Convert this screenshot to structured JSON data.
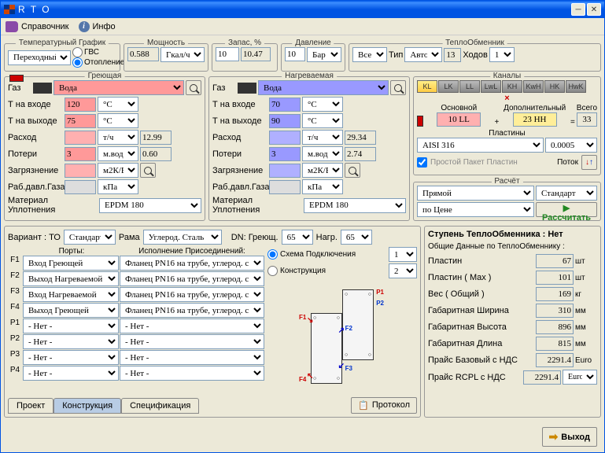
{
  "window": {
    "title": "R T O"
  },
  "menu": {
    "ref": "Справочник",
    "info": "Инфо"
  },
  "tempgraph": {
    "title": "Температурный График",
    "select": "Переходный",
    "gvs": "ГВС",
    "heating": "Отопление"
  },
  "power": {
    "title": "Мощность",
    "val": "0.588",
    "unit": "Гкал/ч"
  },
  "reserve": {
    "title": "Запас, %",
    "v1": "10",
    "v2": "10.47"
  },
  "pressure": {
    "title": "Давление",
    "val": "10",
    "unit": "Бар"
  },
  "hx": {
    "title": "ТеплоОбменник",
    "all": "Все",
    "type_lbl": "Тип",
    "type": "Авто",
    "val": "13",
    "moves_lbl": "Ходов",
    "moves": "1"
  },
  "hot": {
    "title": "Греющая",
    "gas": "Газ",
    "fluid": "Вода",
    "tin_lbl": "Т на входе",
    "tin": "120",
    "tin_u": "°C",
    "tout_lbl": "Т на выходе",
    "tout": "75",
    "tout_u": "°C",
    "flow_lbl": "Расход",
    "flow": "",
    "flow_u": "т/ч",
    "flow_calc": "12.99",
    "loss_lbl": "Потери",
    "loss": "3",
    "loss_u": "м.вод.с",
    "loss_calc": "0.60",
    "foul_lbl": "Загрязнение",
    "foul": "",
    "foul_u": "м2К/Вт",
    "press_lbl": "Раб.давл.Газа",
    "press": "",
    "press_u": "кПа",
    "mat_lbl": "Материал Уплотнения",
    "mat": "EPDM 180"
  },
  "cold": {
    "title": "Нагреваемая",
    "gas": "Газ",
    "fluid": "Вода",
    "tin_lbl": "Т на входе",
    "tin": "70",
    "tin_u": "°C",
    "tout_lbl": "Т на выходе",
    "tout": "90",
    "tout_u": "°C",
    "flow_lbl": "Расход",
    "flow": "",
    "flow_u": "т/ч",
    "flow_calc": "29.34",
    "loss_lbl": "Потери",
    "loss": "3",
    "loss_u": "м.вод.с",
    "loss_calc": "2.74",
    "foul_lbl": "Загрязнение",
    "foul": "",
    "foul_u": "м2К/Вт",
    "press_lbl": "Раб.давл.Газа",
    "press": "",
    "press_u": "кПа",
    "mat_lbl": "Материал Уплотнения",
    "mat": "EPDM 180"
  },
  "channels": {
    "title": "Каналы",
    "items": [
      "KL",
      "LK",
      "LL",
      "LwL",
      "KH",
      "KwH",
      "HK",
      "HwK"
    ],
    "main_lbl": "Основной",
    "main": "10 LL",
    "add_lbl": "Дополнительный",
    "add": "23 HH",
    "total_lbl": "Всего",
    "total": "33",
    "plates_lbl": "Пластины",
    "mat": "AISI 316",
    "thick": "0.0005",
    "simple_lbl": "Простой Пакет Пластин",
    "flow_lbl": "Поток"
  },
  "calc": {
    "title": "Расчёт",
    "direct": "Прямой",
    "std": "Стандарт",
    "byprice": "по Цене",
    "btn": "Рассчитать"
  },
  "variant": {
    "lbl": "Вариант : ТО",
    "std": "Стандарт",
    "frame_lbl": "Рама",
    "frame": "Углерод. Сталь",
    "dn_lbl": "DN: Греющ.",
    "dn1": "65",
    "dn2_lbl": "Нагр.",
    "dn2": "65"
  },
  "ports": {
    "title": "Порты:",
    "exec_title": "Исполнение  Присоединений:",
    "rows": [
      {
        "p": "F1",
        "name": "Вход Греющей",
        "conn": "Фланец PN16 на трубе, углерод. с"
      },
      {
        "p": "F2",
        "name": "Выход Нагреваемой",
        "conn": "Фланец PN16 на трубе, углерод. с"
      },
      {
        "p": "F3",
        "name": "Вход Нагреваемой",
        "conn": "Фланец PN16 на трубе, углерод. с"
      },
      {
        "p": "F4",
        "name": "Выход Греющей",
        "conn": "Фланец PN16 на трубе, углерод. с"
      },
      {
        "p": "P1",
        "name": "- Нет -",
        "conn": "- Нет -"
      },
      {
        "p": "P2",
        "name": "- Нет -",
        "conn": "- Нет -"
      },
      {
        "p": "P3",
        "name": "- Нет -",
        "conn": "- Нет -"
      },
      {
        "p": "P4",
        "name": "- Нет -",
        "conn": "- Нет -"
      }
    ]
  },
  "scheme": {
    "opt1": "Схема Подключения",
    "opt1v": "1",
    "opt2": "Конструкция",
    "opt2v": "2"
  },
  "stage": {
    "title": "Ступень ТеплоОбменника :  Нет",
    "subtitle": "Общие Данные  по ТеплоОбменнику :",
    "rows": [
      {
        "lbl": "Пластин",
        "val": "67",
        "u": "шт"
      },
      {
        "lbl": "Пластин  ( Max )",
        "val": "101",
        "u": "шт"
      },
      {
        "lbl": "Вес  ( Общий )",
        "val": "169",
        "u": "кг"
      },
      {
        "lbl": "Габаритная  Ширина",
        "val": "310",
        "u": "мм"
      },
      {
        "lbl": "Габаритная  Высота",
        "val": "896",
        "u": "мм"
      },
      {
        "lbl": "Габаритная  Длина",
        "val": "815",
        "u": "мм"
      },
      {
        "lbl": "Прайс Базовый с НДС",
        "val": "2291.4",
        "u": "Euro"
      },
      {
        "lbl": "Прайс RCPL с НДС",
        "val": "2291.4",
        "u": "Euro"
      }
    ]
  },
  "tabs": {
    "project": "Проект",
    "construction": "Конструкция",
    "spec": "Спецификация"
  },
  "protocol": "Протокол",
  "exit": "Выход",
  "colors": {
    "red": "#ff9999",
    "blue": "#9999ff",
    "panel": "#ece9d8",
    "titlebar": "#0054e3"
  }
}
